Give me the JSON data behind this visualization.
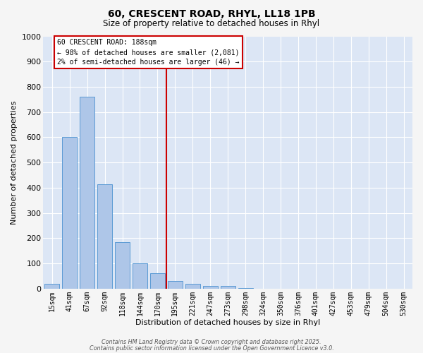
{
  "title_line1": "60, CRESCENT ROAD, RHYL, LL18 1PB",
  "title_line2": "Size of property relative to detached houses in Rhyl",
  "xlabel": "Distribution of detached houses by size in Rhyl",
  "ylabel": "Number of detached properties",
  "bar_labels": [
    "15sqm",
    "41sqm",
    "67sqm",
    "92sqm",
    "118sqm",
    "144sqm",
    "170sqm",
    "195sqm",
    "221sqm",
    "247sqm",
    "273sqm",
    "298sqm",
    "324sqm",
    "350sqm",
    "376sqm",
    "401sqm",
    "427sqm",
    "453sqm",
    "479sqm",
    "504sqm",
    "530sqm"
  ],
  "bar_values": [
    20,
    600,
    760,
    415,
    185,
    100,
    60,
    30,
    20,
    10,
    10,
    2,
    0,
    0,
    0,
    0,
    0,
    0,
    0,
    0,
    0
  ],
  "bar_color": "#aec6e8",
  "bar_edge_color": "#5b9bd5",
  "marker_bin_index": 7,
  "marker_color": "#cc0000",
  "annotation_box_color": "#ffffff",
  "annotation_border_color": "#cc0000",
  "annotation_line1": "60 CRESCENT ROAD: 188sqm",
  "annotation_line2": "← 98% of detached houses are smaller (2,081)",
  "annotation_line3": "2% of semi-detached houses are larger (46) →",
  "ylim_max": 1000,
  "yticks": [
    0,
    100,
    200,
    300,
    400,
    500,
    600,
    700,
    800,
    900,
    1000
  ],
  "plot_bg_color": "#dce6f5",
  "fig_bg_color": "#f5f5f5",
  "footer_line1": "Contains HM Land Registry data © Crown copyright and database right 2025.",
  "footer_line2": "Contains public sector information licensed under the Open Government Licence v3.0."
}
